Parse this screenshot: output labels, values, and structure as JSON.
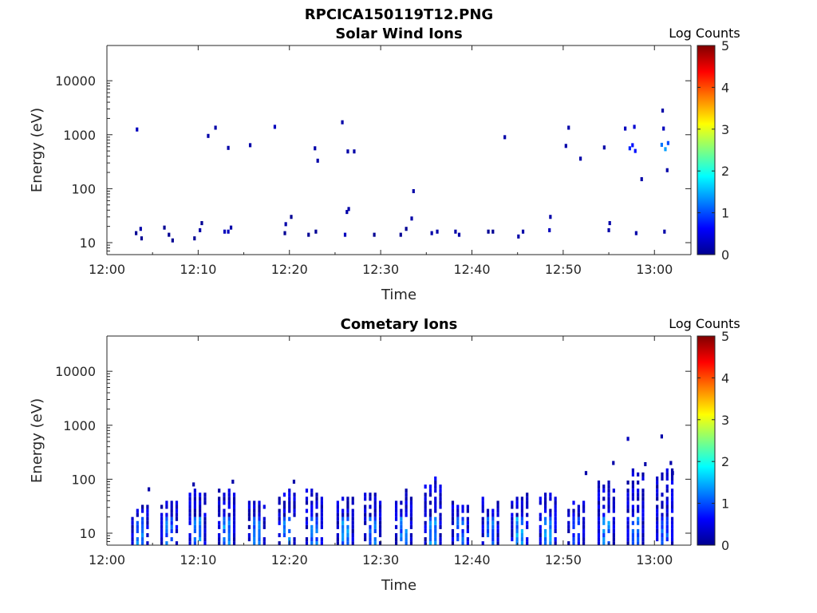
{
  "figure": {
    "title": "RPCICA150119T12.PNG"
  },
  "chart_data": [
    {
      "type": "heatmap",
      "title": "Solar Wind Ions",
      "xlabel": "Time",
      "ylabel": "Energy (eV)",
      "yscale": "log",
      "ylim": [
        6,
        45000
      ],
      "xlim": [
        "12:00",
        "13:04"
      ],
      "xticks": [
        "12:00",
        "12:10",
        "12:20",
        "12:30",
        "12:40",
        "12:50",
        "13:00"
      ],
      "yticks": [
        "10",
        "100",
        "1000",
        "10000"
      ],
      "colorbar": {
        "label": "Log Counts",
        "ticks": [
          "0",
          "1",
          "2",
          "3",
          "4",
          "5"
        ],
        "range": [
          0,
          5
        ],
        "colormap": "jet"
      },
      "points": [
        {
          "t": 3.2,
          "e": 15,
          "v": 0.1
        },
        {
          "t": 3.7,
          "e": 18,
          "v": 0.2
        },
        {
          "t": 3.8,
          "e": 12,
          "v": 0.1
        },
        {
          "t": 3.3,
          "e": 1250,
          "v": 0.3
        },
        {
          "t": 6.3,
          "e": 19,
          "v": 0.1
        },
        {
          "t": 6.8,
          "e": 14,
          "v": 0.1
        },
        {
          "t": 7.2,
          "e": 11,
          "v": 0.1
        },
        {
          "t": 9.6,
          "e": 12,
          "v": 0.1
        },
        {
          "t": 10.2,
          "e": 17,
          "v": 0.2
        },
        {
          "t": 10.4,
          "e": 23,
          "v": 0.1
        },
        {
          "t": 11.1,
          "e": 950,
          "v": 0.2
        },
        {
          "t": 11.9,
          "e": 1350,
          "v": 0.2
        },
        {
          "t": 12.9,
          "e": 16,
          "v": 0.3
        },
        {
          "t": 13.3,
          "e": 16,
          "v": 0.3
        },
        {
          "t": 13.6,
          "e": 19,
          "v": 0.2
        },
        {
          "t": 13.3,
          "e": 570,
          "v": 0.2
        },
        {
          "t": 15.7,
          "e": 640,
          "v": 0.2
        },
        {
          "t": 18.4,
          "e": 1400,
          "v": 0.3
        },
        {
          "t": 19.5,
          "e": 15,
          "v": 0.1
        },
        {
          "t": 19.6,
          "e": 22,
          "v": 0.2
        },
        {
          "t": 20.2,
          "e": 30,
          "v": 0.1
        },
        {
          "t": 22.1,
          "e": 14,
          "v": 0.1
        },
        {
          "t": 22.9,
          "e": 16,
          "v": 0.1
        },
        {
          "t": 22.8,
          "e": 560,
          "v": 0.2
        },
        {
          "t": 23.1,
          "e": 330,
          "v": 0.2
        },
        {
          "t": 25.8,
          "e": 1700,
          "v": 0.2
        },
        {
          "t": 26.1,
          "e": 14,
          "v": 0.3
        },
        {
          "t": 26.3,
          "e": 37,
          "v": 0.2
        },
        {
          "t": 26.5,
          "e": 42,
          "v": 0.2
        },
        {
          "t": 26.4,
          "e": 490,
          "v": 0.2
        },
        {
          "t": 27.1,
          "e": 490,
          "v": 0.2
        },
        {
          "t": 29.3,
          "e": 14,
          "v": 0.1
        },
        {
          "t": 32.2,
          "e": 14,
          "v": 0.1
        },
        {
          "t": 32.8,
          "e": 18,
          "v": 0.1
        },
        {
          "t": 33.4,
          "e": 28,
          "v": 0.2
        },
        {
          "t": 33.6,
          "e": 90,
          "v": 0.2
        },
        {
          "t": 35.6,
          "e": 15,
          "v": 0.2
        },
        {
          "t": 36.2,
          "e": 16,
          "v": 0.2
        },
        {
          "t": 38.2,
          "e": 16,
          "v": 0.2
        },
        {
          "t": 38.6,
          "e": 14,
          "v": 0.2
        },
        {
          "t": 41.8,
          "e": 16,
          "v": 0.1
        },
        {
          "t": 42.3,
          "e": 16,
          "v": 0.1
        },
        {
          "t": 43.6,
          "e": 900,
          "v": 0.2
        },
        {
          "t": 45.1,
          "e": 13,
          "v": 0.2
        },
        {
          "t": 45.6,
          "e": 16,
          "v": 0.2
        },
        {
          "t": 48.5,
          "e": 17,
          "v": 0.3
        },
        {
          "t": 48.6,
          "e": 30,
          "v": 0.2
        },
        {
          "t": 50.3,
          "e": 620,
          "v": 0.2
        },
        {
          "t": 50.6,
          "e": 1350,
          "v": 0.2
        },
        {
          "t": 51.9,
          "e": 360,
          "v": 0.2
        },
        {
          "t": 54.5,
          "e": 580,
          "v": 0.2
        },
        {
          "t": 55.0,
          "e": 17,
          "v": 0.2
        },
        {
          "t": 55.1,
          "e": 23,
          "v": 0.2
        },
        {
          "t": 56.8,
          "e": 1300,
          "v": 0.3
        },
        {
          "t": 57.3,
          "e": 560,
          "v": 0.8
        },
        {
          "t": 57.6,
          "e": 640,
          "v": 0.7
        },
        {
          "t": 57.9,
          "e": 500,
          "v": 0.7
        },
        {
          "t": 57.8,
          "e": 1400,
          "v": 0.4
        },
        {
          "t": 58.0,
          "e": 15,
          "v": 0.2
        },
        {
          "t": 58.6,
          "e": 150,
          "v": 0.2
        },
        {
          "t": 60.9,
          "e": 2800,
          "v": 0.2
        },
        {
          "t": 61.0,
          "e": 1300,
          "v": 0.3
        },
        {
          "t": 60.8,
          "e": 650,
          "v": 1.2
        },
        {
          "t": 61.2,
          "e": 540,
          "v": 1.4
        },
        {
          "t": 61.5,
          "e": 700,
          "v": 1.0
        },
        {
          "t": 61.1,
          "e": 16,
          "v": 0.2
        },
        {
          "t": 61.4,
          "e": 220,
          "v": 0.2
        }
      ]
    },
    {
      "type": "heatmap",
      "title": "Cometary Ions",
      "xlabel": "Time",
      "ylabel": "Energy (eV)",
      "yscale": "log",
      "ylim": [
        6,
        45000
      ],
      "xlim": [
        "12:00",
        "13:04"
      ],
      "xticks": [
        "12:00",
        "12:10",
        "12:20",
        "12:30",
        "12:40",
        "12:50",
        "13:00"
      ],
      "yticks": [
        "10",
        "100",
        "1000",
        "10000"
      ],
      "colorbar": {
        "label": "Log Counts",
        "ticks": [
          "0",
          "1",
          "2",
          "3",
          "4",
          "5"
        ],
        "range": [
          0,
          5
        ],
        "colormap": "jet"
      },
      "bursts": [
        {
          "t": 3.7,
          "top": 40,
          "peak": 1.4
        },
        {
          "t": 6.9,
          "top": 60,
          "peak": 1.3
        },
        {
          "t": 10.0,
          "top": 100,
          "peak": 1.5
        },
        {
          "t": 13.2,
          "top": 90,
          "peak": 1.5
        },
        {
          "t": 16.5,
          "top": 70,
          "peak": 1.3
        },
        {
          "t": 19.8,
          "top": 90,
          "peak": 1.6
        },
        {
          "t": 22.8,
          "top": 80,
          "peak": 1.3
        },
        {
          "t": 26.2,
          "top": 70,
          "peak": 1.5
        },
        {
          "t": 29.2,
          "top": 75,
          "peak": 1.3
        },
        {
          "t": 32.6,
          "top": 75,
          "peak": 1.4
        },
        {
          "t": 35.8,
          "top": 130,
          "peak": 1.6
        },
        {
          "t": 38.8,
          "top": 55,
          "peak": 1.2
        },
        {
          "t": 42.1,
          "top": 50,
          "peak": 1.3
        },
        {
          "t": 45.3,
          "top": 60,
          "peak": 1.6
        },
        {
          "t": 48.4,
          "top": 70,
          "peak": 1.5
        },
        {
          "t": 51.5,
          "top": 50,
          "peak": 1.0
        },
        {
          "t": 54.8,
          "top": 120,
          "peak": 1.5
        },
        {
          "t": 58.0,
          "top": 180,
          "peak": 1.3
        },
        {
          "t": 61.2,
          "top": 200,
          "peak": 1.2
        }
      ],
      "points": [
        {
          "t": 4.6,
          "e": 65,
          "v": 0.2
        },
        {
          "t": 9.5,
          "e": 80,
          "v": 0.2
        },
        {
          "t": 13.8,
          "e": 90,
          "v": 0.2
        },
        {
          "t": 20.5,
          "e": 90,
          "v": 0.2
        },
        {
          "t": 52.5,
          "e": 130,
          "v": 0.2
        },
        {
          "t": 55.5,
          "e": 200,
          "v": 0.2
        },
        {
          "t": 57.1,
          "e": 560,
          "v": 0.3
        },
        {
          "t": 59.0,
          "e": 190,
          "v": 0.2
        },
        {
          "t": 60.8,
          "e": 620,
          "v": 0.2
        },
        {
          "t": 61.8,
          "e": 200,
          "v": 0.2
        },
        {
          "t": 62.0,
          "e": 130,
          "v": 0.2
        }
      ]
    }
  ]
}
